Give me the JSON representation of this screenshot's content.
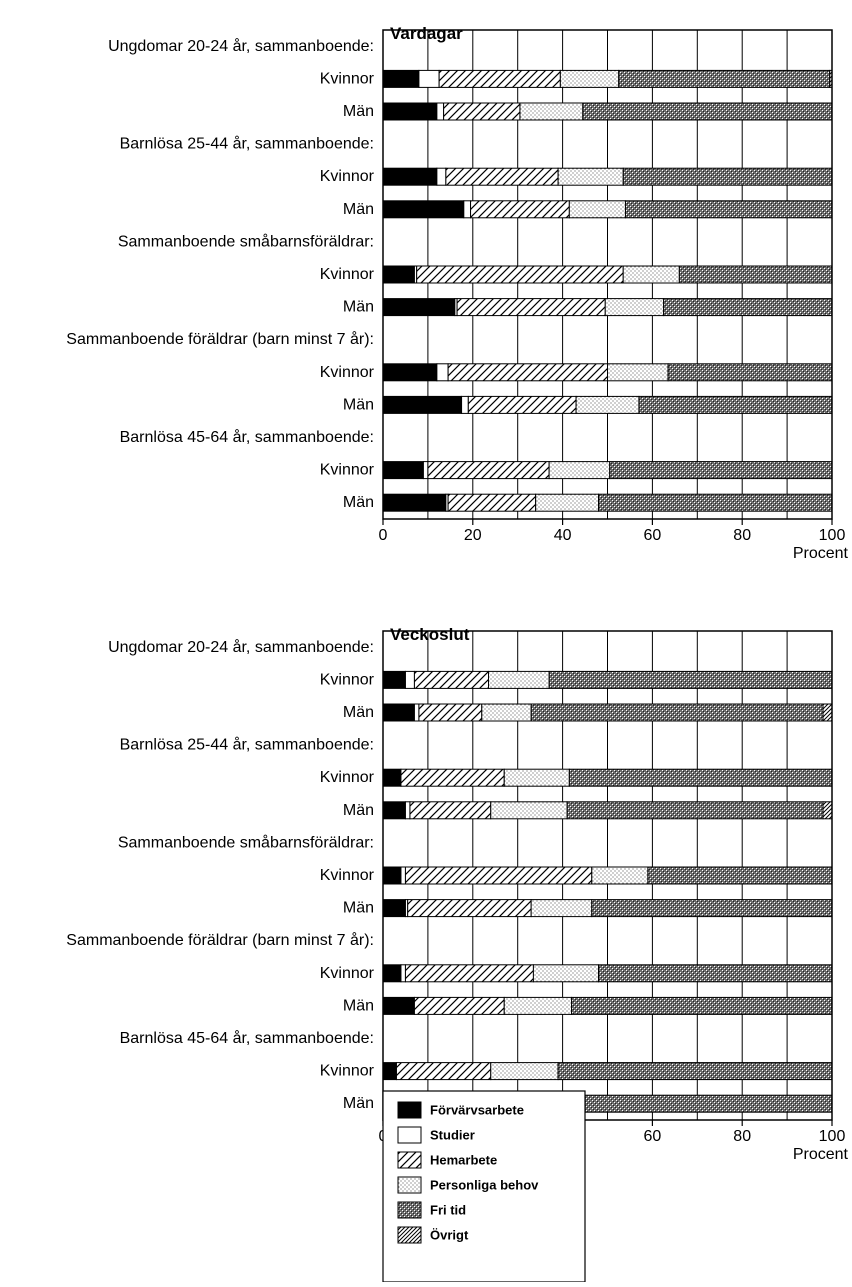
{
  "chart_data": {
    "type": "bar",
    "orientation": "horizontal",
    "stacked": true,
    "xlim": [
      0,
      100
    ],
    "xticks": [
      0,
      20,
      40,
      60,
      80,
      100
    ],
    "xlabel": "Procent",
    "grid": true,
    "legend_position": "bottom-center",
    "series_names": [
      "Förvärvsarbete",
      "Studier",
      "Hemarbete",
      "Personliga behov",
      "Fri tid",
      "Övrigt"
    ],
    "series_patterns": [
      "solid-black",
      "white",
      "hatch-sparse",
      "dots",
      "cross-dense",
      "hatch-dense"
    ],
    "panels": [
      {
        "title": "Vardagar",
        "groups": [
          {
            "label": "Ungdomar 20-24 år, sammanboende:",
            "rows": [
              {
                "label": "Kvinnor",
                "values": [
                  8,
                  4.5,
                  27,
                  13,
                  47,
                  0.5
                ]
              },
              {
                "label": "Män",
                "values": [
                  12,
                  1.5,
                  17,
                  14,
                  55.5,
                  0
                ]
              }
            ]
          },
          {
            "label": "Barnlösa 25-44 år, sammanboende:",
            "rows": [
              {
                "label": "Kvinnor",
                "values": [
                  12,
                  2,
                  25,
                  14.5,
                  46.5,
                  0
                ]
              },
              {
                "label": "Män",
                "values": [
                  18,
                  1.5,
                  22,
                  12.5,
                  46,
                  0
                ]
              }
            ]
          },
          {
            "label": "Sammanboende småbarnsföräldrar:",
            "rows": [
              {
                "label": "Kvinnor",
                "values": [
                  7,
                  0.5,
                  46,
                  12.5,
                  34,
                  0
                ]
              },
              {
                "label": "Män",
                "values": [
                  16,
                  0.5,
                  33,
                  13,
                  37.5,
                  0
                ]
              }
            ]
          },
          {
            "label": "Sammanboende föräldrar (barn minst 7 år):",
            "rows": [
              {
                "label": "Kvinnor",
                "values": [
                  12,
                  2.5,
                  35.5,
                  13.5,
                  36.5,
                  0
                ]
              },
              {
                "label": "Män",
                "values": [
                  17.5,
                  1.5,
                  24,
                  14,
                  43,
                  0
                ]
              }
            ]
          },
          {
            "label": "Barnlösa 45-64 år, sammanboende:",
            "rows": [
              {
                "label": "Kvinnor",
                "values": [
                  9,
                  1,
                  27,
                  13.5,
                  49.5,
                  0
                ]
              },
              {
                "label": "Män",
                "values": [
                  14,
                  0.5,
                  19.5,
                  14,
                  52,
                  0
                ]
              }
            ]
          }
        ]
      },
      {
        "title": "Veckoslut",
        "groups": [
          {
            "label": "Ungdomar 20-24 år, sammanboende:",
            "rows": [
              {
                "label": "Kvinnor",
                "values": [
                  5,
                  2,
                  16.5,
                  13.5,
                  63,
                  0
                ]
              },
              {
                "label": "Män",
                "values": [
                  7,
                  1,
                  14,
                  11,
                  65,
                  2
                ]
              }
            ]
          },
          {
            "label": "Barnlösa 25-44 år, sammanboende:",
            "rows": [
              {
                "label": "Kvinnor",
                "values": [
                  4,
                  0,
                  23,
                  14.5,
                  58.5,
                  0
                ]
              },
              {
                "label": "Män",
                "values": [
                  5,
                  1,
                  18,
                  17,
                  57,
                  2
                ]
              }
            ]
          },
          {
            "label": "Sammanboende småbarnsföräldrar:",
            "rows": [
              {
                "label": "Kvinnor",
                "values": [
                  4,
                  1,
                  41.5,
                  12.5,
                  41,
                  0
                ]
              },
              {
                "label": "Män",
                "values": [
                  5,
                  0.5,
                  27.5,
                  13.5,
                  53.5,
                  0
                ]
              }
            ]
          },
          {
            "label": "Sammanboende föräldrar (barn minst 7 år):",
            "rows": [
              {
                "label": "Kvinnor",
                "values": [
                  4,
                  1,
                  28.5,
                  14.5,
                  52,
                  0
                ]
              },
              {
                "label": "Män",
                "values": [
                  7,
                  0,
                  20,
                  15,
                  58,
                  0
                ]
              }
            ]
          },
          {
            "label": "Barnlösa 45-64 år, sammanboende:",
            "rows": [
              {
                "label": "Kvinnor",
                "values": [
                  3,
                  0,
                  21,
                  15,
                  61,
                  0
                ]
              },
              {
                "label": "Män",
                "values": [
                  6,
                  0,
                  14,
                  14.5,
                  65.5,
                  0
                ]
              }
            ]
          }
        ]
      }
    ]
  }
}
